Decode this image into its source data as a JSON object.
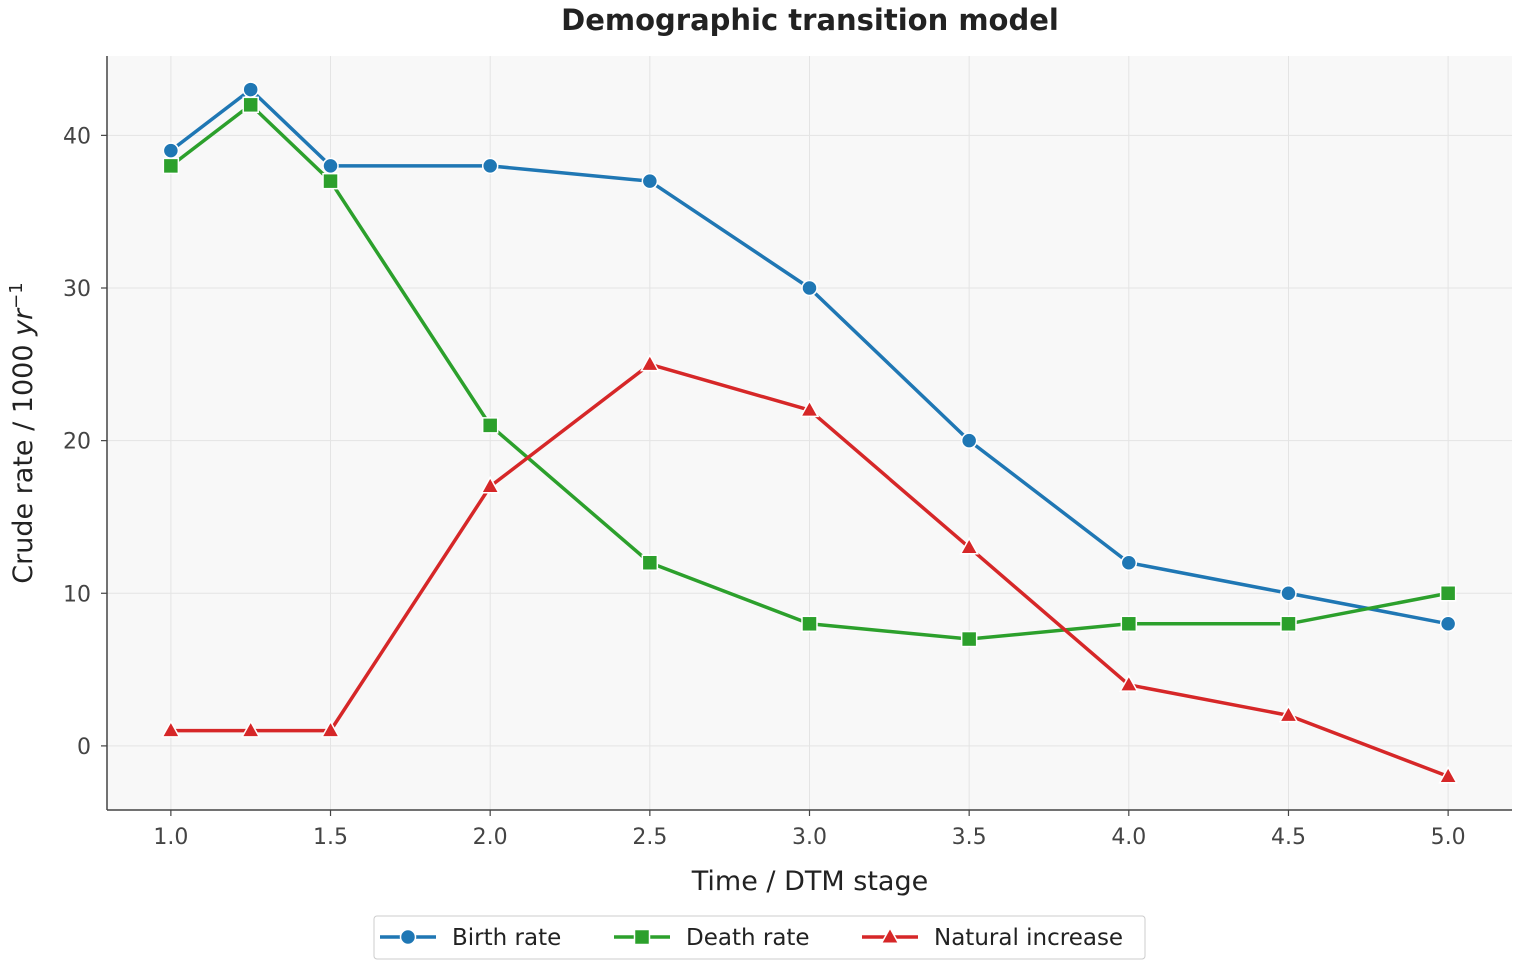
{
  "chart_data": {
    "type": "line",
    "title": "Demographic transition model",
    "xlabel": "Time / DTM stage",
    "ylabel_text": "Crude rate / 1000 ",
    "ylabel_unit": "yr",
    "ylabel_exp": "−1",
    "xlim": [
      0.8,
      5.2
    ],
    "ylim": [
      -4.2,
      45.2
    ],
    "x_ticks": [
      "1.0",
      "1.5",
      "2.0",
      "2.5",
      "3.0",
      "3.5",
      "4.0",
      "4.5",
      "5.0"
    ],
    "y_ticks": [
      "0",
      "10",
      "20",
      "30",
      "40"
    ],
    "grid": true,
    "legend_position": "bottom-center",
    "x": [
      1.0,
      1.25,
      1.5,
      2.0,
      2.5,
      3.0,
      3.5,
      4.0,
      4.5,
      5.0
    ],
    "series": [
      {
        "name": "Birth rate",
        "color": "#1f77b4",
        "marker": "circle",
        "values": [
          39,
          43,
          38,
          38,
          37,
          30,
          20,
          12,
          10,
          8
        ]
      },
      {
        "name": "Death rate",
        "color": "#2ca02c",
        "marker": "square",
        "values": [
          38,
          42,
          37,
          21,
          12,
          8,
          7,
          8,
          8,
          10
        ]
      },
      {
        "name": "Natural increase",
        "color": "#d62728",
        "marker": "triangle",
        "values": [
          1,
          1,
          1,
          17,
          25,
          22,
          13,
          4,
          2,
          -2
        ]
      }
    ]
  }
}
